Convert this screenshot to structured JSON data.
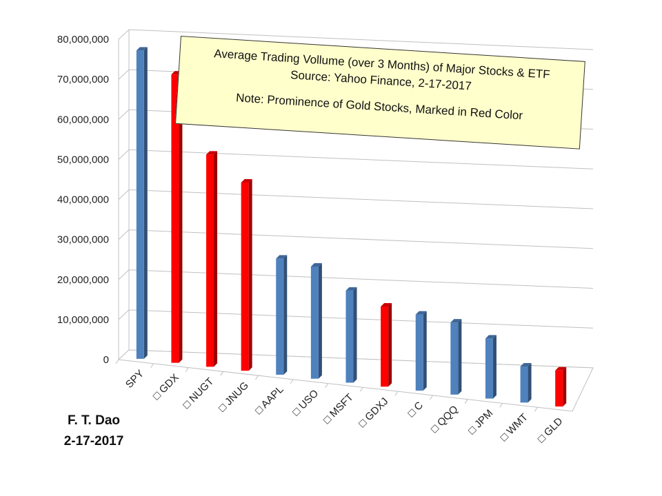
{
  "chart_data": {
    "type": "bar",
    "title": "Average Trading Vollume (over 3 Months) of Major Stocks & ETF",
    "subtitle": "Source:  Yahoo Finance, 2-17-2017",
    "note": "Note:  Prominence of Gold Stocks, Marked in Red Color",
    "categories": [
      "SPY",
      "GDX",
      "NUGT",
      "JNUG",
      "AAPL",
      "USO",
      "MSFT",
      "GDXJ",
      "C",
      "QQQ",
      "JPM",
      "WMT",
      "GLD"
    ],
    "category_labels": [
      "SPY",
      "□ GDX",
      "□ NUGT",
      "□ JNUG",
      "□ AAPL",
      "□ USO",
      "□ MSFT",
      "□ GDXJ",
      "□ C",
      "□ QQQ",
      "□ JPM",
      "□ WMT",
      "□ GLD"
    ],
    "values": [
      77000000,
      72000000,
      53000000,
      47000000,
      29000000,
      28000000,
      23000000,
      20000000,
      19000000,
      18000000,
      15000000,
      9000000,
      9000000
    ],
    "gold": [
      false,
      true,
      true,
      true,
      false,
      false,
      false,
      true,
      false,
      false,
      false,
      false,
      true
    ],
    "colors": {
      "normal": "#4f81bd",
      "gold": "#ff0000"
    },
    "yticks": [
      "0",
      "10,000,000",
      "20,000,000",
      "30,000,000",
      "40,000,000",
      "50,000,000",
      "60,000,000",
      "70,000,000",
      "80,000,000"
    ],
    "ylim": [
      0,
      80000000
    ],
    "grid": true
  },
  "credit": {
    "name": "F. T. Dao",
    "date": "2-17-2017"
  }
}
